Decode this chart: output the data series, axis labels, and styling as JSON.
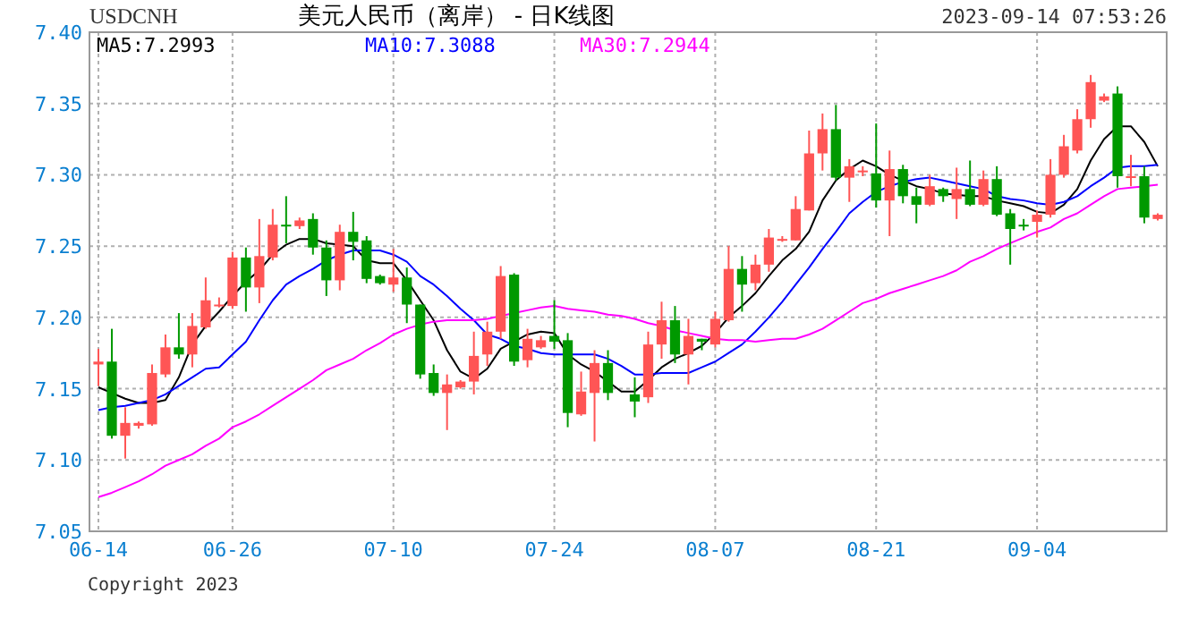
{
  "chart_data": {
    "type": "candlestick",
    "title": "美元人民币（离岸） - 日K线图",
    "annotations": [
      "USDCNH",
      "2023-09-14 07:53:26",
      "Copyright 2023"
    ],
    "categories": [
      "06-14",
      null,
      null,
      null,
      null,
      null,
      null,
      null,
      null,
      null,
      "06-26",
      null,
      null,
      null,
      null,
      null,
      null,
      null,
      null,
      null,
      null,
      null,
      "07-10",
      null,
      null,
      null,
      null,
      null,
      null,
      null,
      null,
      null,
      null,
      null,
      "07-24",
      null,
      null,
      null,
      null,
      null,
      null,
      null,
      null,
      null,
      null,
      null,
      "08-07",
      null,
      null,
      null,
      null,
      null,
      null,
      null,
      null,
      null,
      null,
      null,
      "08-21",
      null,
      null,
      null,
      null,
      null,
      null,
      null,
      null,
      null,
      null,
      null,
      "09-04",
      null,
      null,
      null,
      null,
      null,
      null,
      null,
      null,
      null
    ],
    "ohlc": [
      [
        7.167,
        7.178,
        7.152,
        7.169
      ],
      [
        7.169,
        7.192,
        7.115,
        7.117
      ],
      [
        7.117,
        7.137,
        7.101,
        7.126
      ],
      [
        7.124,
        7.127,
        7.122,
        7.126
      ],
      [
        7.125,
        7.167,
        7.124,
        7.161
      ],
      [
        7.16,
        7.188,
        7.158,
        7.179
      ],
      [
        7.179,
        7.203,
        7.171,
        7.174
      ],
      [
        7.174,
        7.203,
        7.165,
        7.194
      ],
      [
        7.193,
        7.228,
        7.192,
        7.212
      ],
      [
        7.208,
        7.214,
        7.207,
        7.209
      ],
      [
        7.208,
        7.246,
        7.206,
        7.242
      ],
      [
        7.242,
        7.249,
        7.204,
        7.221
      ],
      [
        7.221,
        7.269,
        7.21,
        7.243
      ],
      [
        7.242,
        7.276,
        7.24,
        7.265
      ],
      [
        7.265,
        7.285,
        7.252,
        7.264
      ],
      [
        7.264,
        7.27,
        7.262,
        7.268
      ],
      [
        7.269,
        7.273,
        7.244,
        7.249
      ],
      [
        7.249,
        7.254,
        7.215,
        7.226
      ],
      [
        7.226,
        7.265,
        7.219,
        7.26
      ],
      [
        7.26,
        7.274,
        7.24,
        7.253
      ],
      [
        7.254,
        7.257,
        7.224,
        7.227
      ],
      [
        7.229,
        7.23,
        7.223,
        7.224
      ],
      [
        7.223,
        7.248,
        7.218,
        7.228
      ],
      [
        7.228,
        7.235,
        7.196,
        7.209
      ],
      [
        7.209,
        7.209,
        7.157,
        7.16
      ],
      [
        7.161,
        7.167,
        7.145,
        7.147
      ],
      [
        7.147,
        7.16,
        7.121,
        7.153
      ],
      [
        7.151,
        7.156,
        7.15,
        7.155
      ],
      [
        7.155,
        7.19,
        7.146,
        7.173
      ],
      [
        7.174,
        7.197,
        7.166,
        7.19
      ],
      [
        7.19,
        7.236,
        7.185,
        7.229
      ],
      [
        7.23,
        7.231,
        7.166,
        7.169
      ],
      [
        7.17,
        7.192,
        7.165,
        7.185
      ],
      [
        7.179,
        7.187,
        7.178,
        7.184
      ],
      [
        7.187,
        7.212,
        7.178,
        7.183
      ],
      [
        7.184,
        7.189,
        7.123,
        7.133
      ],
      [
        7.132,
        7.162,
        7.131,
        7.148
      ],
      [
        7.147,
        7.177,
        7.113,
        7.168
      ],
      [
        7.168,
        7.177,
        7.142,
        7.147
      ],
      null,
      [
        7.146,
        7.158,
        7.13,
        7.141
      ],
      [
        7.144,
        7.19,
        7.14,
        7.181
      ],
      [
        7.181,
        7.211,
        7.171,
        7.198
      ],
      [
        7.198,
        7.208,
        7.168,
        7.174
      ],
      [
        7.174,
        7.199,
        7.153,
        7.187
      ],
      [
        7.185,
        7.185,
        7.177,
        7.183
      ],
      [
        7.181,
        7.204,
        7.179,
        7.199
      ],
      [
        7.198,
        7.25,
        7.197,
        7.234
      ],
      [
        7.234,
        7.243,
        7.204,
        7.223
      ],
      [
        7.224,
        7.244,
        7.219,
        7.237
      ],
      [
        7.237,
        7.262,
        7.232,
        7.256
      ],
      [
        7.254,
        7.257,
        7.253,
        7.255
      ],
      [
        7.254,
        7.285,
        7.254,
        7.276
      ],
      [
        7.275,
        7.331,
        7.275,
        7.315
      ],
      [
        7.315,
        7.343,
        7.303,
        7.332
      ],
      [
        7.332,
        7.349,
        7.296,
        7.298
      ],
      [
        7.298,
        7.311,
        7.281,
        7.306
      ],
      [
        7.302,
        7.306,
        7.299,
        7.303
      ],
      [
        7.301,
        7.336,
        7.277,
        7.282
      ],
      [
        7.282,
        7.317,
        7.257,
        7.304
      ],
      [
        7.304,
        7.307,
        7.28,
        7.285
      ],
      [
        7.285,
        7.291,
        7.266,
        7.279
      ],
      [
        7.279,
        7.3,
        7.278,
        7.292
      ],
      [
        7.29,
        7.291,
        7.281,
        7.285
      ],
      [
        7.283,
        7.305,
        7.269,
        7.29
      ],
      [
        7.29,
        7.31,
        7.278,
        7.279
      ],
      [
        7.279,
        7.303,
        7.278,
        7.297
      ],
      [
        7.297,
        7.306,
        7.271,
        7.272
      ],
      [
        7.273,
        7.276,
        7.237,
        7.262
      ],
      [
        7.265,
        7.269,
        7.261,
        7.264
      ],
      [
        7.267,
        7.275,
        7.256,
        7.272
      ],
      [
        7.272,
        7.311,
        7.27,
        7.3
      ],
      [
        7.3,
        7.328,
        7.298,
        7.32
      ],
      [
        7.317,
        7.346,
        7.315,
        7.339
      ],
      [
        7.339,
        7.37,
        7.333,
        7.365
      ],
      [
        7.352,
        7.357,
        7.351,
        7.355
      ],
      [
        7.357,
        7.362,
        7.291,
        7.299
      ],
      [
        7.298,
        7.314,
        7.292,
        7.299
      ],
      [
        7.299,
        7.306,
        7.266,
        7.27
      ],
      [
        7.269,
        7.273,
        7.268,
        7.272
      ]
    ],
    "series": [
      {
        "type": "line",
        "name": "MA5:7.2993",
        "color": "#000000",
        "values": [
          7.151,
          7.147,
          7.143,
          7.14,
          7.14,
          7.142,
          7.158,
          7.181,
          7.194,
          7.204,
          7.215,
          7.225,
          7.233,
          7.244,
          7.251,
          7.255,
          7.255,
          7.252,
          7.251,
          7.25,
          7.24,
          7.238,
          7.238,
          7.226,
          7.212,
          7.198,
          7.177,
          7.162,
          7.157,
          7.164,
          7.178,
          7.183,
          7.188,
          7.19,
          7.189,
          7.174,
          7.167,
          7.162,
          7.155,
          7.148,
          7.148,
          7.156,
          7.165,
          7.171,
          7.175,
          7.18,
          7.189,
          7.2,
          7.208,
          7.217,
          7.229,
          7.24,
          7.248,
          7.26,
          7.282,
          7.296,
          7.304,
          7.31,
          7.306,
          7.3,
          7.296,
          7.292,
          7.29,
          7.287,
          7.286,
          7.285,
          7.285,
          7.282,
          7.28,
          7.278,
          7.274,
          7.273,
          7.279,
          7.29,
          7.31,
          7.325,
          7.334,
          7.334,
          7.323,
          7.306
        ]
      },
      {
        "type": "line",
        "name": "MA10:7.3088",
        "color": "#0000ff",
        "values": [
          7.135,
          7.137,
          7.138,
          7.14,
          7.142,
          7.146,
          7.152,
          7.158,
          7.164,
          7.165,
          7.174,
          7.183,
          7.198,
          7.212,
          7.223,
          7.229,
          7.234,
          7.24,
          7.244,
          7.247,
          7.247,
          7.247,
          7.244,
          7.239,
          7.229,
          7.223,
          7.215,
          7.206,
          7.198,
          7.188,
          7.185,
          7.18,
          7.178,
          7.175,
          7.174,
          7.174,
          7.174,
          7.174,
          7.171,
          7.166,
          7.16,
          7.16,
          7.161,
          7.161,
          7.161,
          7.165,
          7.169,
          7.175,
          7.181,
          7.19,
          7.2,
          7.211,
          7.223,
          7.235,
          7.248,
          7.26,
          7.273,
          7.281,
          7.288,
          7.292,
          7.295,
          7.297,
          7.298,
          7.296,
          7.294,
          7.292,
          7.29,
          7.285,
          7.283,
          7.282,
          7.28,
          7.279,
          7.281,
          7.285,
          7.292,
          7.298,
          7.305,
          7.306,
          7.306,
          7.307
        ]
      },
      {
        "type": "line",
        "name": "MA30:7.2944",
        "color": "#ff00ff",
        "values": [
          7.074,
          7.077,
          7.081,
          7.085,
          7.09,
          7.096,
          7.1,
          7.104,
          7.11,
          7.115,
          7.123,
          7.127,
          7.132,
          7.138,
          7.144,
          7.15,
          7.156,
          7.163,
          7.167,
          7.171,
          7.177,
          7.182,
          7.188,
          7.192,
          7.195,
          7.197,
          7.198,
          7.198,
          7.198,
          7.199,
          7.201,
          7.203,
          7.205,
          7.207,
          7.208,
          7.206,
          7.205,
          7.204,
          7.202,
          7.201,
          7.199,
          7.196,
          7.194,
          7.191,
          7.189,
          7.187,
          7.185,
          7.184,
          7.184,
          7.183,
          7.184,
          7.185,
          7.185,
          7.188,
          7.192,
          7.198,
          7.204,
          7.21,
          7.213,
          7.217,
          7.22,
          7.223,
          7.226,
          7.229,
          7.233,
          7.239,
          7.243,
          7.248,
          7.252,
          7.256,
          7.26,
          7.263,
          7.269,
          7.273,
          7.279,
          7.285,
          7.29,
          7.291,
          7.292,
          7.293
        ]
      }
    ],
    "ylim": [
      7.05,
      7.4
    ],
    "yticks": [
      7.05,
      {
        "value": 7.1,
        "label": "7.10"
      },
      7.15,
      {
        "value": 7.2,
        "label": "7.20"
      },
      7.25,
      {
        "value": 7.3,
        "label": "7.30"
      },
      7.35,
      {
        "value": 7.4,
        "label": "7.40"
      }
    ],
    "grid": true,
    "legend": "top left"
  }
}
